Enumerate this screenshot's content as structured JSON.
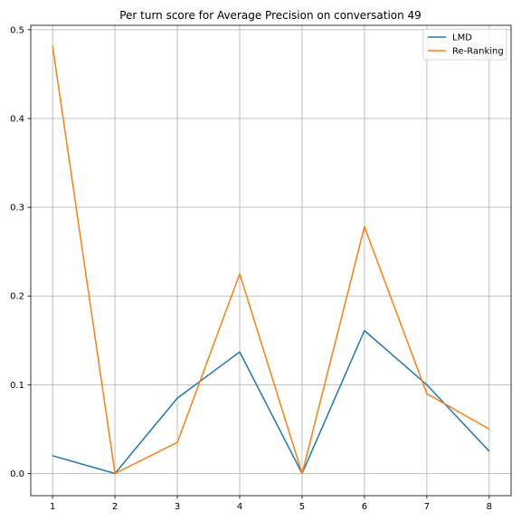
{
  "chart_data": {
    "type": "line",
    "title": "Per turn score for Average Precision on conversation 49",
    "xlabel": "",
    "ylabel": "",
    "x": [
      1,
      2,
      3,
      4,
      5,
      6,
      7,
      8
    ],
    "xlim": [
      0.65,
      8.35
    ],
    "ylim": [
      -0.025,
      0.505
    ],
    "xticks": [
      "1",
      "2",
      "3",
      "4",
      "5",
      "6",
      "7",
      "8"
    ],
    "yticks": [
      "0.0",
      "0.1",
      "0.2",
      "0.3",
      "0.4",
      "0.5"
    ],
    "grid": true,
    "legend_position": "top-right",
    "series": [
      {
        "name": "LMD",
        "color": "#1f77b4",
        "values": [
          0.02,
          0.0,
          0.085,
          0.137,
          0.0,
          0.161,
          0.1,
          0.025
        ]
      },
      {
        "name": "Re-Ranking",
        "color": "#ff7f0e",
        "values": [
          0.482,
          0.0,
          0.035,
          0.225,
          0.0,
          0.278,
          0.09,
          0.05
        ]
      }
    ]
  }
}
